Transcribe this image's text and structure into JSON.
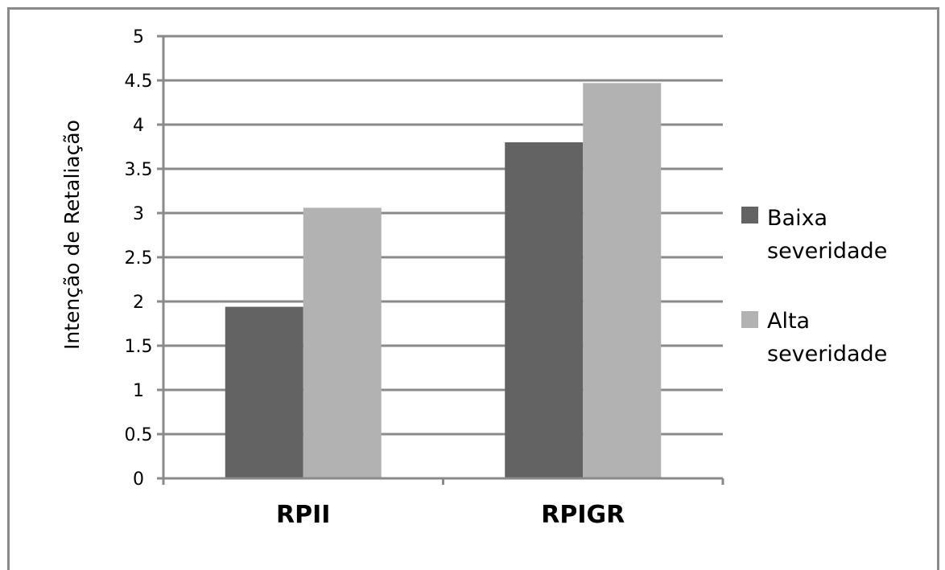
{
  "chart_data": {
    "type": "bar",
    "title": "",
    "xlabel": "",
    "ylabel": "Intenção de Retaliação",
    "categories": [
      "RPII",
      "RPIGR"
    ],
    "series": [
      {
        "name": "Baixa severidade",
        "values": [
          1.94,
          3.8
        ],
        "color": "#636363"
      },
      {
        "name": "Alta severidade",
        "values": [
          3.06,
          4.47
        ],
        "color": "#b2b2b2"
      }
    ],
    "ylim": [
      0,
      5
    ],
    "yticks": [
      "0",
      "0.5",
      "1",
      "1.5",
      "2",
      "2.5",
      "3",
      "3.5",
      "4",
      "4.5",
      "5"
    ],
    "grid": true,
    "legend": "right"
  }
}
